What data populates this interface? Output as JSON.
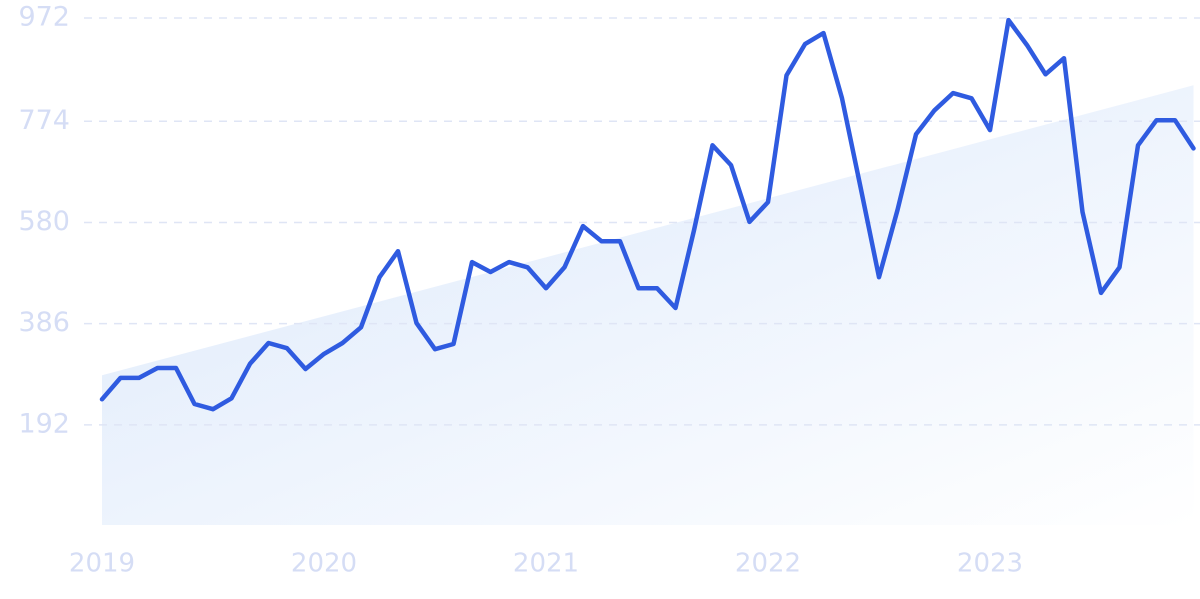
{
  "chart_data": {
    "type": "line",
    "categories": [
      "2019",
      null,
      null,
      null,
      null,
      null,
      null,
      null,
      null,
      null,
      null,
      null,
      "2020",
      null,
      null,
      null,
      null,
      null,
      null,
      null,
      null,
      null,
      null,
      null,
      "2021",
      null,
      null,
      null,
      null,
      null,
      null,
      null,
      null,
      null,
      null,
      null,
      "2022",
      null,
      null,
      null,
      null,
      null,
      null,
      null,
      null,
      null,
      null,
      null,
      "2023",
      null,
      null,
      null,
      null,
      null,
      null,
      null,
      null,
      null,
      null,
      null
    ],
    "values": [
      241,
      282,
      282,
      301,
      301,
      232,
      222,
      243,
      309,
      349,
      339,
      299,
      328,
      349,
      379,
      475,
      525,
      387,
      337,
      347,
      504,
      485,
      504,
      494,
      454,
      494,
      573,
      544,
      544,
      454,
      454,
      416,
      565,
      728,
      690,
      581,
      619,
      862,
      922,
      943,
      818,
      648,
      475,
      604,
      749,
      795,
      828,
      818,
      757,
      968,
      920,
      864,
      895,
      600,
      445,
      494,
      728,
      776,
      776,
      722
    ],
    "color": "#2f5be0",
    "trend": [
      287,
      843
    ],
    "trend_color": "#dbe8fb",
    "ylim": [
      0,
      972
    ],
    "yticks": [
      192,
      386,
      580,
      774,
      972
    ],
    "grid": true
  }
}
